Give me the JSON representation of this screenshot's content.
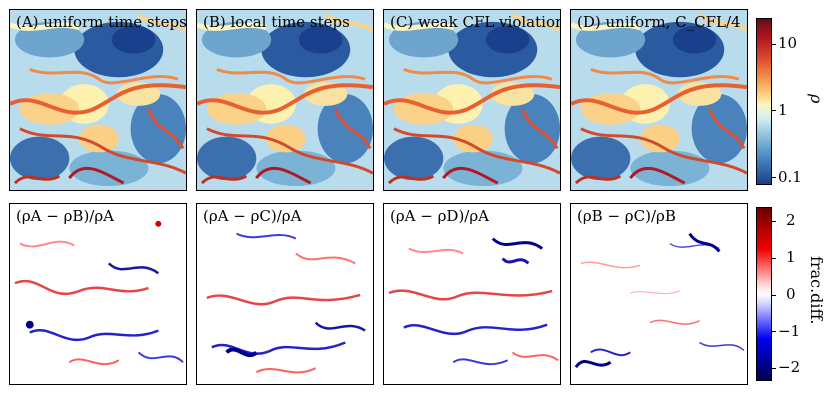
{
  "figure": {
    "top_row_labels": [
      "(A) uniform time steps",
      "(B) local time steps",
      "(C) weak CFL violation",
      "(D) uniform, C_CFL/4"
    ],
    "bottom_row_labels": [
      "(ρA − ρB)/ρA",
      "(ρA − ρC)/ρA",
      "(ρA − ρD)/ρA",
      "(ρB − ρC)/ρB"
    ],
    "density_colorbar": {
      "label": "ρ",
      "ticks": [
        "10",
        "1",
        "0.1"
      ],
      "scale": "log",
      "colormap": "RdYlBu_r"
    },
    "difference_colorbar": {
      "label": "frac.diff.",
      "ticks": [
        "2",
        "1",
        "0",
        "−1",
        "−2"
      ],
      "colormap": "seismic"
    },
    "colors": {
      "density_low": "#1a3f8c",
      "density_mid": "#fdf6c0",
      "density_high": "#b21820",
      "diff_neg": "#00008b",
      "diff_zero": "#ffffff",
      "diff_pos": "#8b0000"
    }
  }
}
